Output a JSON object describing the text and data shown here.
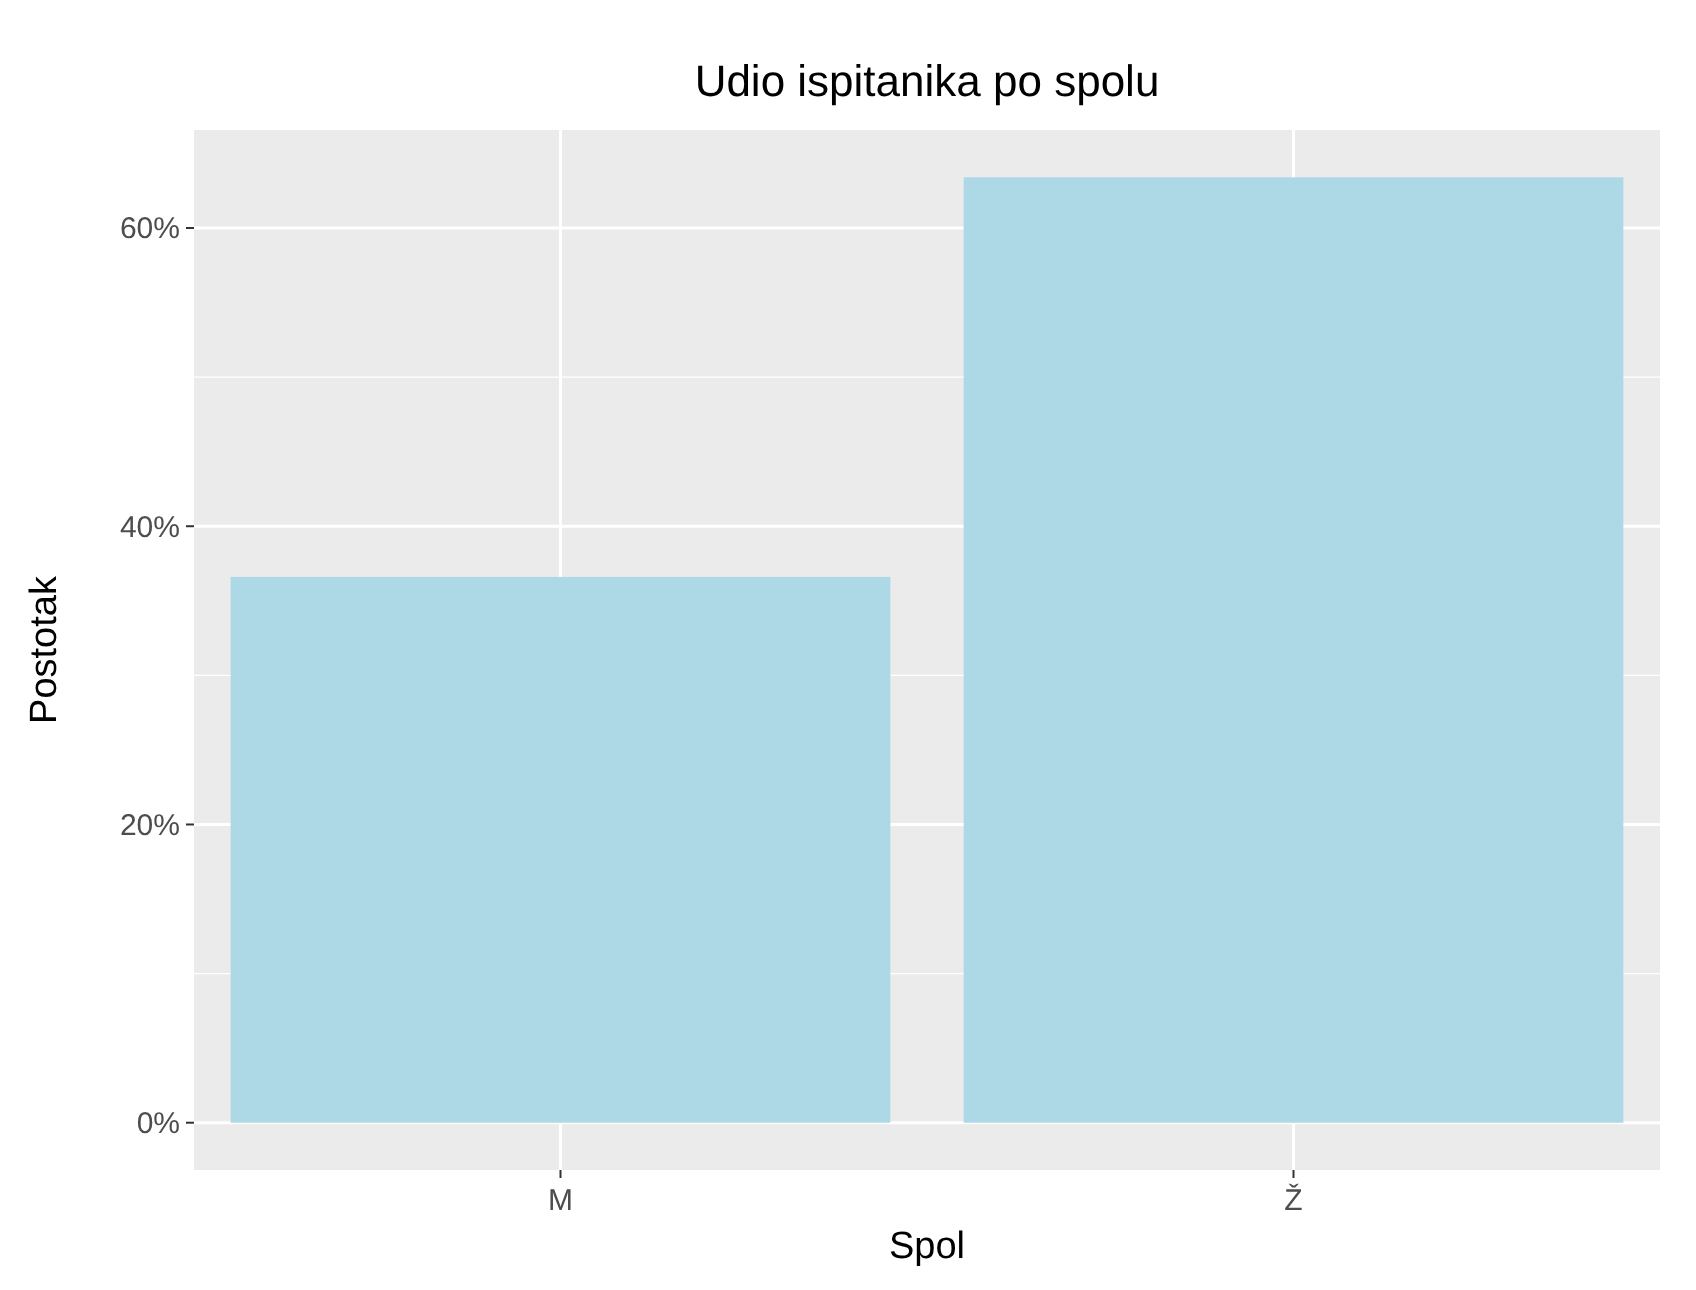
{
  "chart_data": {
    "type": "bar",
    "title": "Udio ispitanika po spolu",
    "xlabel": "Spol",
    "ylabel": "Postotak",
    "categories": [
      "M",
      "Ž"
    ],
    "values": [
      36.6,
      63.4
    ],
    "color": "#add8e6",
    "ylim": [
      -3.17,
      66.57
    ],
    "yticks": [
      {
        "value": 0,
        "label": "0%"
      },
      {
        "value": 20,
        "label": "20%"
      },
      {
        "value": 40,
        "label": "40%"
      },
      {
        "value": 60,
        "label": "60%"
      }
    ],
    "grid": true
  }
}
